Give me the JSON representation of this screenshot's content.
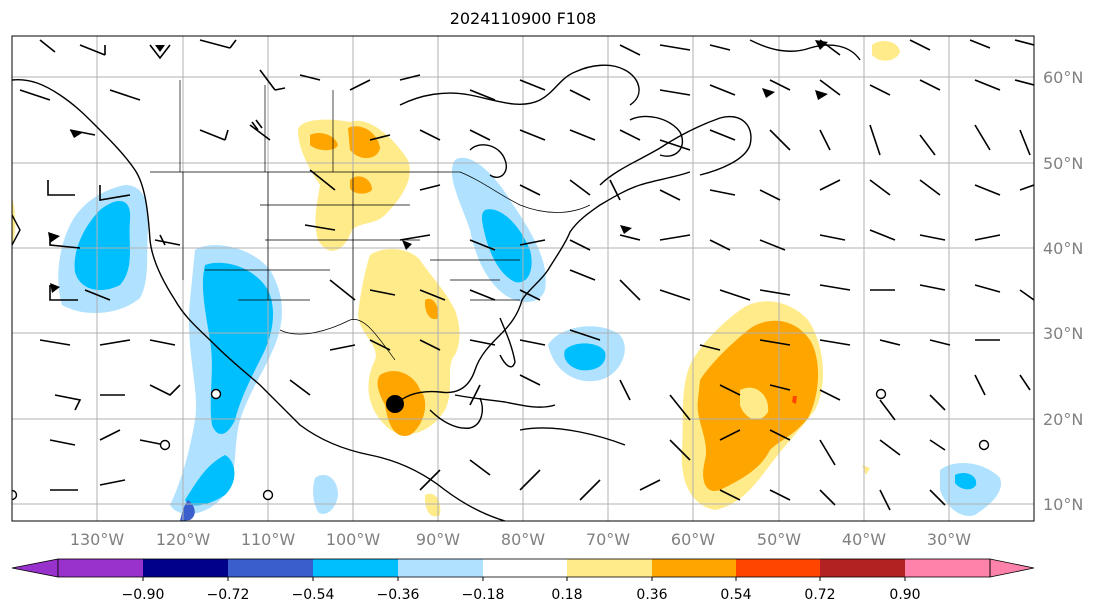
{
  "title": "2024110900 F108",
  "lon_ticks": [
    "130°W",
    "120°W",
    "110°W",
    "100°W",
    "90°W",
    "80°W",
    "70°W",
    "60°W",
    "50°W",
    "40°W",
    "30°W"
  ],
  "lat_ticks": [
    "60°N",
    "50°N",
    "40°N",
    "30°N",
    "20°N",
    "10°N"
  ],
  "colorbar": {
    "ticks": [
      "−0.90",
      "−0.72",
      "−0.54",
      "−0.36",
      "−0.18",
      "0.18",
      "0.36",
      "0.54",
      "0.72",
      "0.90"
    ],
    "colors": [
      "#9932cc",
      "#00008b",
      "#3a5fcd",
      "#00bfff",
      "#b0e2ff",
      "#ffffff",
      "#ffeb8a",
      "#ffa500",
      "#ff4500",
      "#b22222",
      "#ff82ab"
    ]
  },
  "colors": {
    "blue_light": "#b0e2ff",
    "blue": "#00bfff",
    "blue_dark": "#3a5fcd",
    "yellow": "#ffeb8a",
    "orange": "#ffa500",
    "red": "#ff4500",
    "grid": "#b0b0b0",
    "tick_text": "#808080"
  },
  "marker": {
    "name": "storm-center",
    "lon": -96.5,
    "lat": 22
  }
}
